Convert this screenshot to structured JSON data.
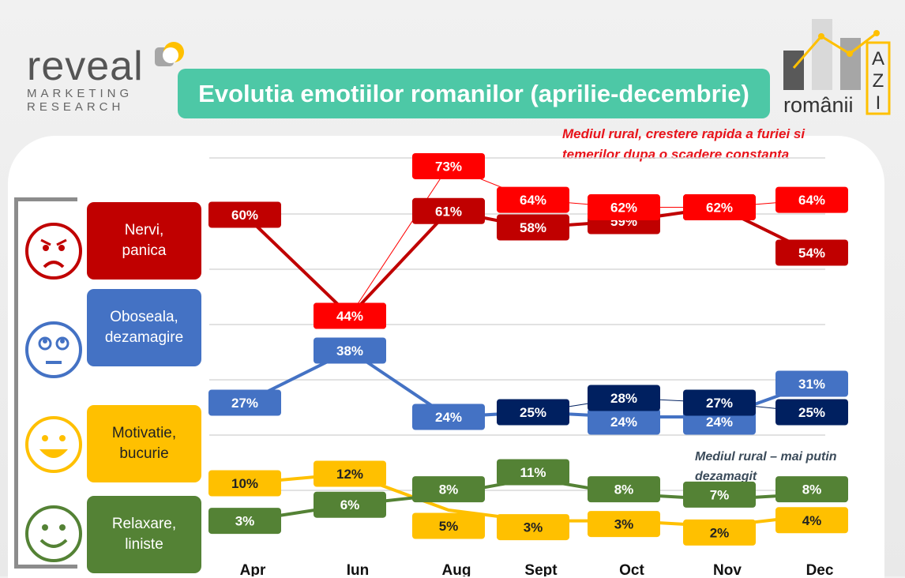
{
  "title": "Evolutia emotiilor romanilor (aprilie-decembrie)",
  "logo_left": {
    "word": "reveal",
    "line1": "MARKETING",
    "line2": "RESEARCH"
  },
  "logo_right": {
    "word": "românii",
    "letters": [
      "A",
      "Z",
      "I"
    ]
  },
  "notes": {
    "rural_anger": "Mediul rural, crestere rapida a furiei si temerilor dupa o scadere constanta",
    "rural_less_disappointed": "Mediul rural – mai putin dezamagit"
  },
  "categories": [
    {
      "label": "Nervi,\npanica",
      "color": "#c00000",
      "text_color": "#ffffff",
      "face": "angry-face-icon"
    },
    {
      "label": "Oboseala,\ndezamagire",
      "color": "#4472c4",
      "text_color": "#ffffff",
      "face": "tired-face-icon"
    },
    {
      "label": "Motivatie,\nbucurie",
      "color": "#ffc000",
      "text_color": "#222222",
      "face": "happy-face-icon"
    },
    {
      "label": "Relaxare,\nliniste",
      "color": "#548235",
      "text_color": "#ffffff",
      "face": "relaxed-face-icon"
    }
  ],
  "chart_data": {
    "type": "line",
    "categories": [
      "Apr",
      "Iun",
      "Aug",
      "Sept",
      "Oct",
      "Nov",
      "Dec"
    ],
    "series": [
      {
        "name": "Nervi, panica",
        "color": "#c00000",
        "values": [
          60,
          44,
          61,
          58,
          59,
          62,
          54
        ]
      },
      {
        "name": "Oboseala, dezamagire",
        "color": "#4472c4",
        "values": [
          27,
          38,
          24,
          25,
          24,
          24,
          31
        ]
      },
      {
        "name": "Motivatie, bucurie",
        "color": "#ffc000",
        "values": [
          10,
          12,
          5,
          3,
          3,
          2,
          4
        ]
      },
      {
        "name": "Relaxare, liniste",
        "color": "#548235",
        "values": [
          3,
          6,
          8,
          11,
          8,
          7,
          8
        ]
      },
      {
        "name": "Mediul rural",
        "color": "#ff0000",
        "thin": true,
        "values": [
          null,
          44,
          73,
          64,
          62,
          62,
          64
        ]
      },
      {
        "name": "Mediul rural",
        "color": "#002060",
        "thin": true,
        "values": [
          null,
          null,
          null,
          25,
          28,
          27,
          25
        ]
      }
    ]
  }
}
